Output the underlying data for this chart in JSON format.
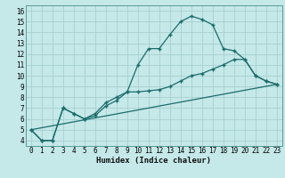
{
  "xlabel": "Humidex (Indice chaleur)",
  "background_color": "#c5e8e8",
  "line_color": "#1a6b6b",
  "grid_color": "#a8d0d0",
  "spine_color": "#5a9a9a",
  "xlim": [
    -0.5,
    23.5
  ],
  "ylim": [
    3.5,
    16.5
  ],
  "xticks": [
    0,
    1,
    2,
    3,
    4,
    5,
    6,
    7,
    8,
    9,
    10,
    11,
    12,
    13,
    14,
    15,
    16,
    17,
    18,
    19,
    20,
    21,
    22,
    23
  ],
  "yticks": [
    4,
    5,
    6,
    7,
    8,
    9,
    10,
    11,
    12,
    13,
    14,
    15,
    16
  ],
  "line1_x": [
    0,
    1,
    2,
    3,
    4,
    5,
    6,
    7,
    8,
    9,
    10,
    11,
    12,
    13,
    14,
    15,
    16,
    17,
    18,
    19,
    20,
    21,
    22,
    23
  ],
  "line1_y": [
    5.0,
    4.0,
    4.0,
    7.0,
    6.5,
    6.0,
    6.5,
    7.5,
    8.0,
    8.5,
    11.0,
    12.5,
    12.5,
    13.8,
    15.0,
    15.5,
    15.2,
    14.7,
    12.5,
    12.3,
    11.5,
    10.0,
    9.5,
    9.2
  ],
  "line2_x": [
    0,
    1,
    2,
    3,
    4,
    5,
    6,
    7,
    8,
    9,
    10,
    11,
    12,
    13,
    14,
    15,
    16,
    17,
    18,
    19,
    20,
    21,
    22,
    23
  ],
  "line2_y": [
    5.0,
    4.0,
    4.0,
    7.0,
    6.5,
    6.0,
    6.3,
    7.2,
    7.7,
    8.5,
    8.5,
    8.6,
    8.7,
    9.0,
    9.5,
    10.0,
    10.2,
    10.6,
    11.0,
    11.5,
    11.5,
    10.0,
    9.5,
    9.2
  ],
  "line3_x": [
    0,
    23
  ],
  "line3_y": [
    5.0,
    9.2
  ],
  "xlabel_fontsize": 6.5,
  "tick_fontsize": 5.5
}
